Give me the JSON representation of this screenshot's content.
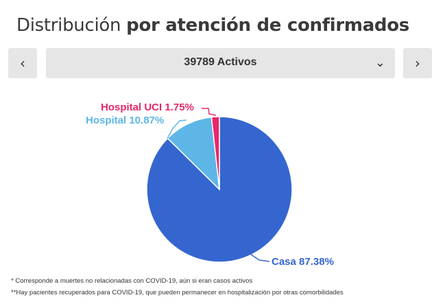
{
  "title": {
    "light": "Distribución ",
    "bold": "por atención de confirmados"
  },
  "nav": {
    "prev_icon": "chevron-left-icon",
    "next_icon": "chevron-right-icon",
    "prev_glyph": "‹",
    "next_glyph": "›"
  },
  "selector": {
    "value": "39789 Activos",
    "icon": "chevron-down-icon",
    "glyph": "⌄"
  },
  "colors": {
    "casa": "#3566cf",
    "hospital": "#5eb6e6",
    "uci": "#e8276b",
    "controls": "#e6e6e6"
  },
  "chart_data": {
    "type": "pie",
    "slices": [
      {
        "label": "Casa 87.38%",
        "value": 87.38,
        "color": "#3566cf"
      },
      {
        "label": "Hospital 10.87%",
        "value": 10.87,
        "color": "#5eb6e6"
      },
      {
        "label": "Hospital UCI 1.75%",
        "value": 1.75,
        "color": "#e8276b"
      }
    ]
  },
  "footnotes": [
    "* Corresponde a muertes no relacionadas con COVID-19, aún si eran casos activos",
    "**Hay pacientes recuperados para COVID-19, que pueden permanecer en hospitalización por otras comorbilidades"
  ]
}
